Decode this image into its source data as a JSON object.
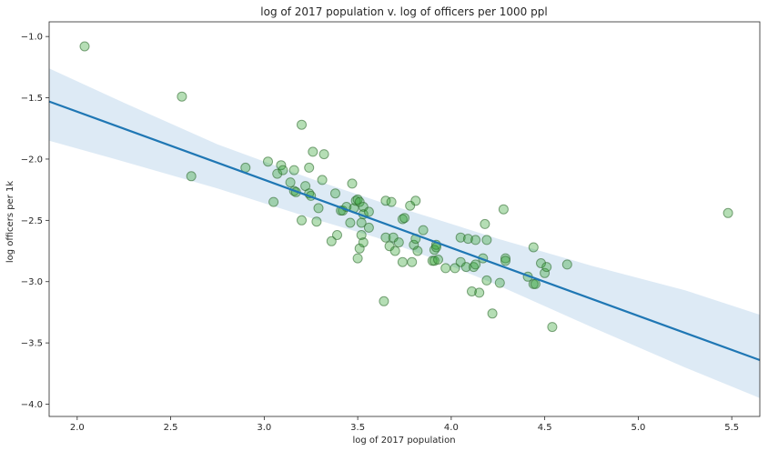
{
  "chart_data": {
    "type": "scatter",
    "title": "log of 2017 population v. log of officers per 1000 ppl",
    "xlabel": "log of 2017 population",
    "ylabel": "log officers per 1k",
    "xlim": [
      1.85,
      5.65
    ],
    "ylim": [
      -4.1,
      -0.88
    ],
    "xticks": [
      2.0,
      2.5,
      3.0,
      3.5,
      4.0,
      4.5,
      5.0,
      5.5
    ],
    "xtick_labels": [
      "2.0",
      "2.5",
      "3.0",
      "3.5",
      "4.0",
      "4.5",
      "5.0",
      "5.5"
    ],
    "yticks": [
      -1.0,
      -1.5,
      -2.0,
      -2.5,
      -3.0,
      -3.5,
      -4.0
    ],
    "ytick_labels": [
      "−1.0",
      "−1.5",
      "−2.0",
      "−2.5",
      "−3.0",
      "−3.5",
      "−4.0"
    ],
    "grid": false,
    "colors": {
      "points": "#2ca02c",
      "regression_line": "#1f77b4",
      "confidence_band": "#c6dcef"
    },
    "points": [
      {
        "x": 2.04,
        "y": -1.08
      },
      {
        "x": 2.56,
        "y": -1.49
      },
      {
        "x": 2.61,
        "y": -2.14
      },
      {
        "x": 2.9,
        "y": -2.07
      },
      {
        "x": 3.02,
        "y": -2.02
      },
      {
        "x": 3.05,
        "y": -2.35
      },
      {
        "x": 3.07,
        "y": -2.12
      },
      {
        "x": 3.09,
        "y": -2.05
      },
      {
        "x": 3.1,
        "y": -2.09
      },
      {
        "x": 3.14,
        "y": -2.19
      },
      {
        "x": 3.16,
        "y": -2.26
      },
      {
        "x": 3.16,
        "y": -2.09
      },
      {
        "x": 3.17,
        "y": -2.27
      },
      {
        "x": 3.2,
        "y": -1.72
      },
      {
        "x": 3.2,
        "y": -2.5
      },
      {
        "x": 3.22,
        "y": -2.22
      },
      {
        "x": 3.24,
        "y": -2.07
      },
      {
        "x": 3.24,
        "y": -2.28
      },
      {
        "x": 3.25,
        "y": -2.3
      },
      {
        "x": 3.26,
        "y": -1.94
      },
      {
        "x": 3.28,
        "y": -2.51
      },
      {
        "x": 3.29,
        "y": -2.4
      },
      {
        "x": 3.31,
        "y": -2.17
      },
      {
        "x": 3.32,
        "y": -1.96
      },
      {
        "x": 3.36,
        "y": -2.67
      },
      {
        "x": 3.38,
        "y": -2.28
      },
      {
        "x": 3.39,
        "y": -2.62
      },
      {
        "x": 3.41,
        "y": -2.42
      },
      {
        "x": 3.42,
        "y": -2.42
      },
      {
        "x": 3.44,
        "y": -2.39
      },
      {
        "x": 3.46,
        "y": -2.52
      },
      {
        "x": 3.47,
        "y": -2.2
      },
      {
        "x": 3.48,
        "y": -2.4
      },
      {
        "x": 3.49,
        "y": -2.34
      },
      {
        "x": 3.5,
        "y": -2.33
      },
      {
        "x": 3.5,
        "y": -2.81
      },
      {
        "x": 3.51,
        "y": -2.35
      },
      {
        "x": 3.51,
        "y": -2.73
      },
      {
        "x": 3.52,
        "y": -2.62
      },
      {
        "x": 3.52,
        "y": -2.52
      },
      {
        "x": 3.53,
        "y": -2.68
      },
      {
        "x": 3.53,
        "y": -2.39
      },
      {
        "x": 3.53,
        "y": -2.45
      },
      {
        "x": 3.56,
        "y": -2.43
      },
      {
        "x": 3.56,
        "y": -2.56
      },
      {
        "x": 3.64,
        "y": -3.16
      },
      {
        "x": 3.65,
        "y": -2.34
      },
      {
        "x": 3.65,
        "y": -2.64
      },
      {
        "x": 3.67,
        "y": -2.71
      },
      {
        "x": 3.68,
        "y": -2.35
      },
      {
        "x": 3.69,
        "y": -2.64
      },
      {
        "x": 3.7,
        "y": -2.75
      },
      {
        "x": 3.72,
        "y": -2.68
      },
      {
        "x": 3.74,
        "y": -2.49
      },
      {
        "x": 3.74,
        "y": -2.84
      },
      {
        "x": 3.75,
        "y": -2.48
      },
      {
        "x": 3.78,
        "y": -2.38
      },
      {
        "x": 3.79,
        "y": -2.84
      },
      {
        "x": 3.8,
        "y": -2.7
      },
      {
        "x": 3.81,
        "y": -2.65
      },
      {
        "x": 3.81,
        "y": -2.34
      },
      {
        "x": 3.82,
        "y": -2.75
      },
      {
        "x": 3.85,
        "y": -2.58
      },
      {
        "x": 3.9,
        "y": -2.83
      },
      {
        "x": 3.91,
        "y": -2.83
      },
      {
        "x": 3.91,
        "y": -2.74
      },
      {
        "x": 3.92,
        "y": -2.7
      },
      {
        "x": 3.92,
        "y": -2.72
      },
      {
        "x": 3.93,
        "y": -2.82
      },
      {
        "x": 3.97,
        "y": -2.89
      },
      {
        "x": 4.02,
        "y": -2.89
      },
      {
        "x": 4.05,
        "y": -2.84
      },
      {
        "x": 4.05,
        "y": -2.64
      },
      {
        "x": 4.08,
        "y": -2.88
      },
      {
        "x": 4.09,
        "y": -2.65
      },
      {
        "x": 4.11,
        "y": -3.08
      },
      {
        "x": 4.12,
        "y": -2.88
      },
      {
        "x": 4.13,
        "y": -2.66
      },
      {
        "x": 4.13,
        "y": -2.86
      },
      {
        "x": 4.15,
        "y": -3.09
      },
      {
        "x": 4.17,
        "y": -2.81
      },
      {
        "x": 4.18,
        "y": -2.53
      },
      {
        "x": 4.19,
        "y": -2.99
      },
      {
        "x": 4.19,
        "y": -2.66
      },
      {
        "x": 4.22,
        "y": -3.26
      },
      {
        "x": 4.26,
        "y": -3.01
      },
      {
        "x": 4.28,
        "y": -2.41
      },
      {
        "x": 4.29,
        "y": -2.81
      },
      {
        "x": 4.29,
        "y": -2.83
      },
      {
        "x": 4.41,
        "y": -2.96
      },
      {
        "x": 4.44,
        "y": -2.72
      },
      {
        "x": 4.44,
        "y": -3.02
      },
      {
        "x": 4.45,
        "y": -3.02
      },
      {
        "x": 4.48,
        "y": -2.85
      },
      {
        "x": 4.5,
        "y": -2.93
      },
      {
        "x": 4.51,
        "y": -2.88
      },
      {
        "x": 4.54,
        "y": -3.37
      },
      {
        "x": 4.62,
        "y": -2.86
      },
      {
        "x": 5.48,
        "y": -2.44
      }
    ],
    "regression": {
      "x": [
        1.85,
        5.65
      ],
      "y": [
        -1.53,
        -3.64
      ]
    },
    "confidence_band": {
      "x": [
        1.85,
        2.25,
        2.75,
        3.25,
        3.6,
        3.9,
        4.25,
        4.75,
        5.25,
        5.65
      ],
      "upper": [
        -1.26,
        -1.54,
        -1.88,
        -2.16,
        -2.34,
        -2.48,
        -2.65,
        -2.87,
        -3.07,
        -3.27
      ],
      "lower": [
        -1.85,
        -2.02,
        -2.24,
        -2.48,
        -2.64,
        -2.81,
        -3.03,
        -3.37,
        -3.7,
        -3.95
      ]
    }
  }
}
